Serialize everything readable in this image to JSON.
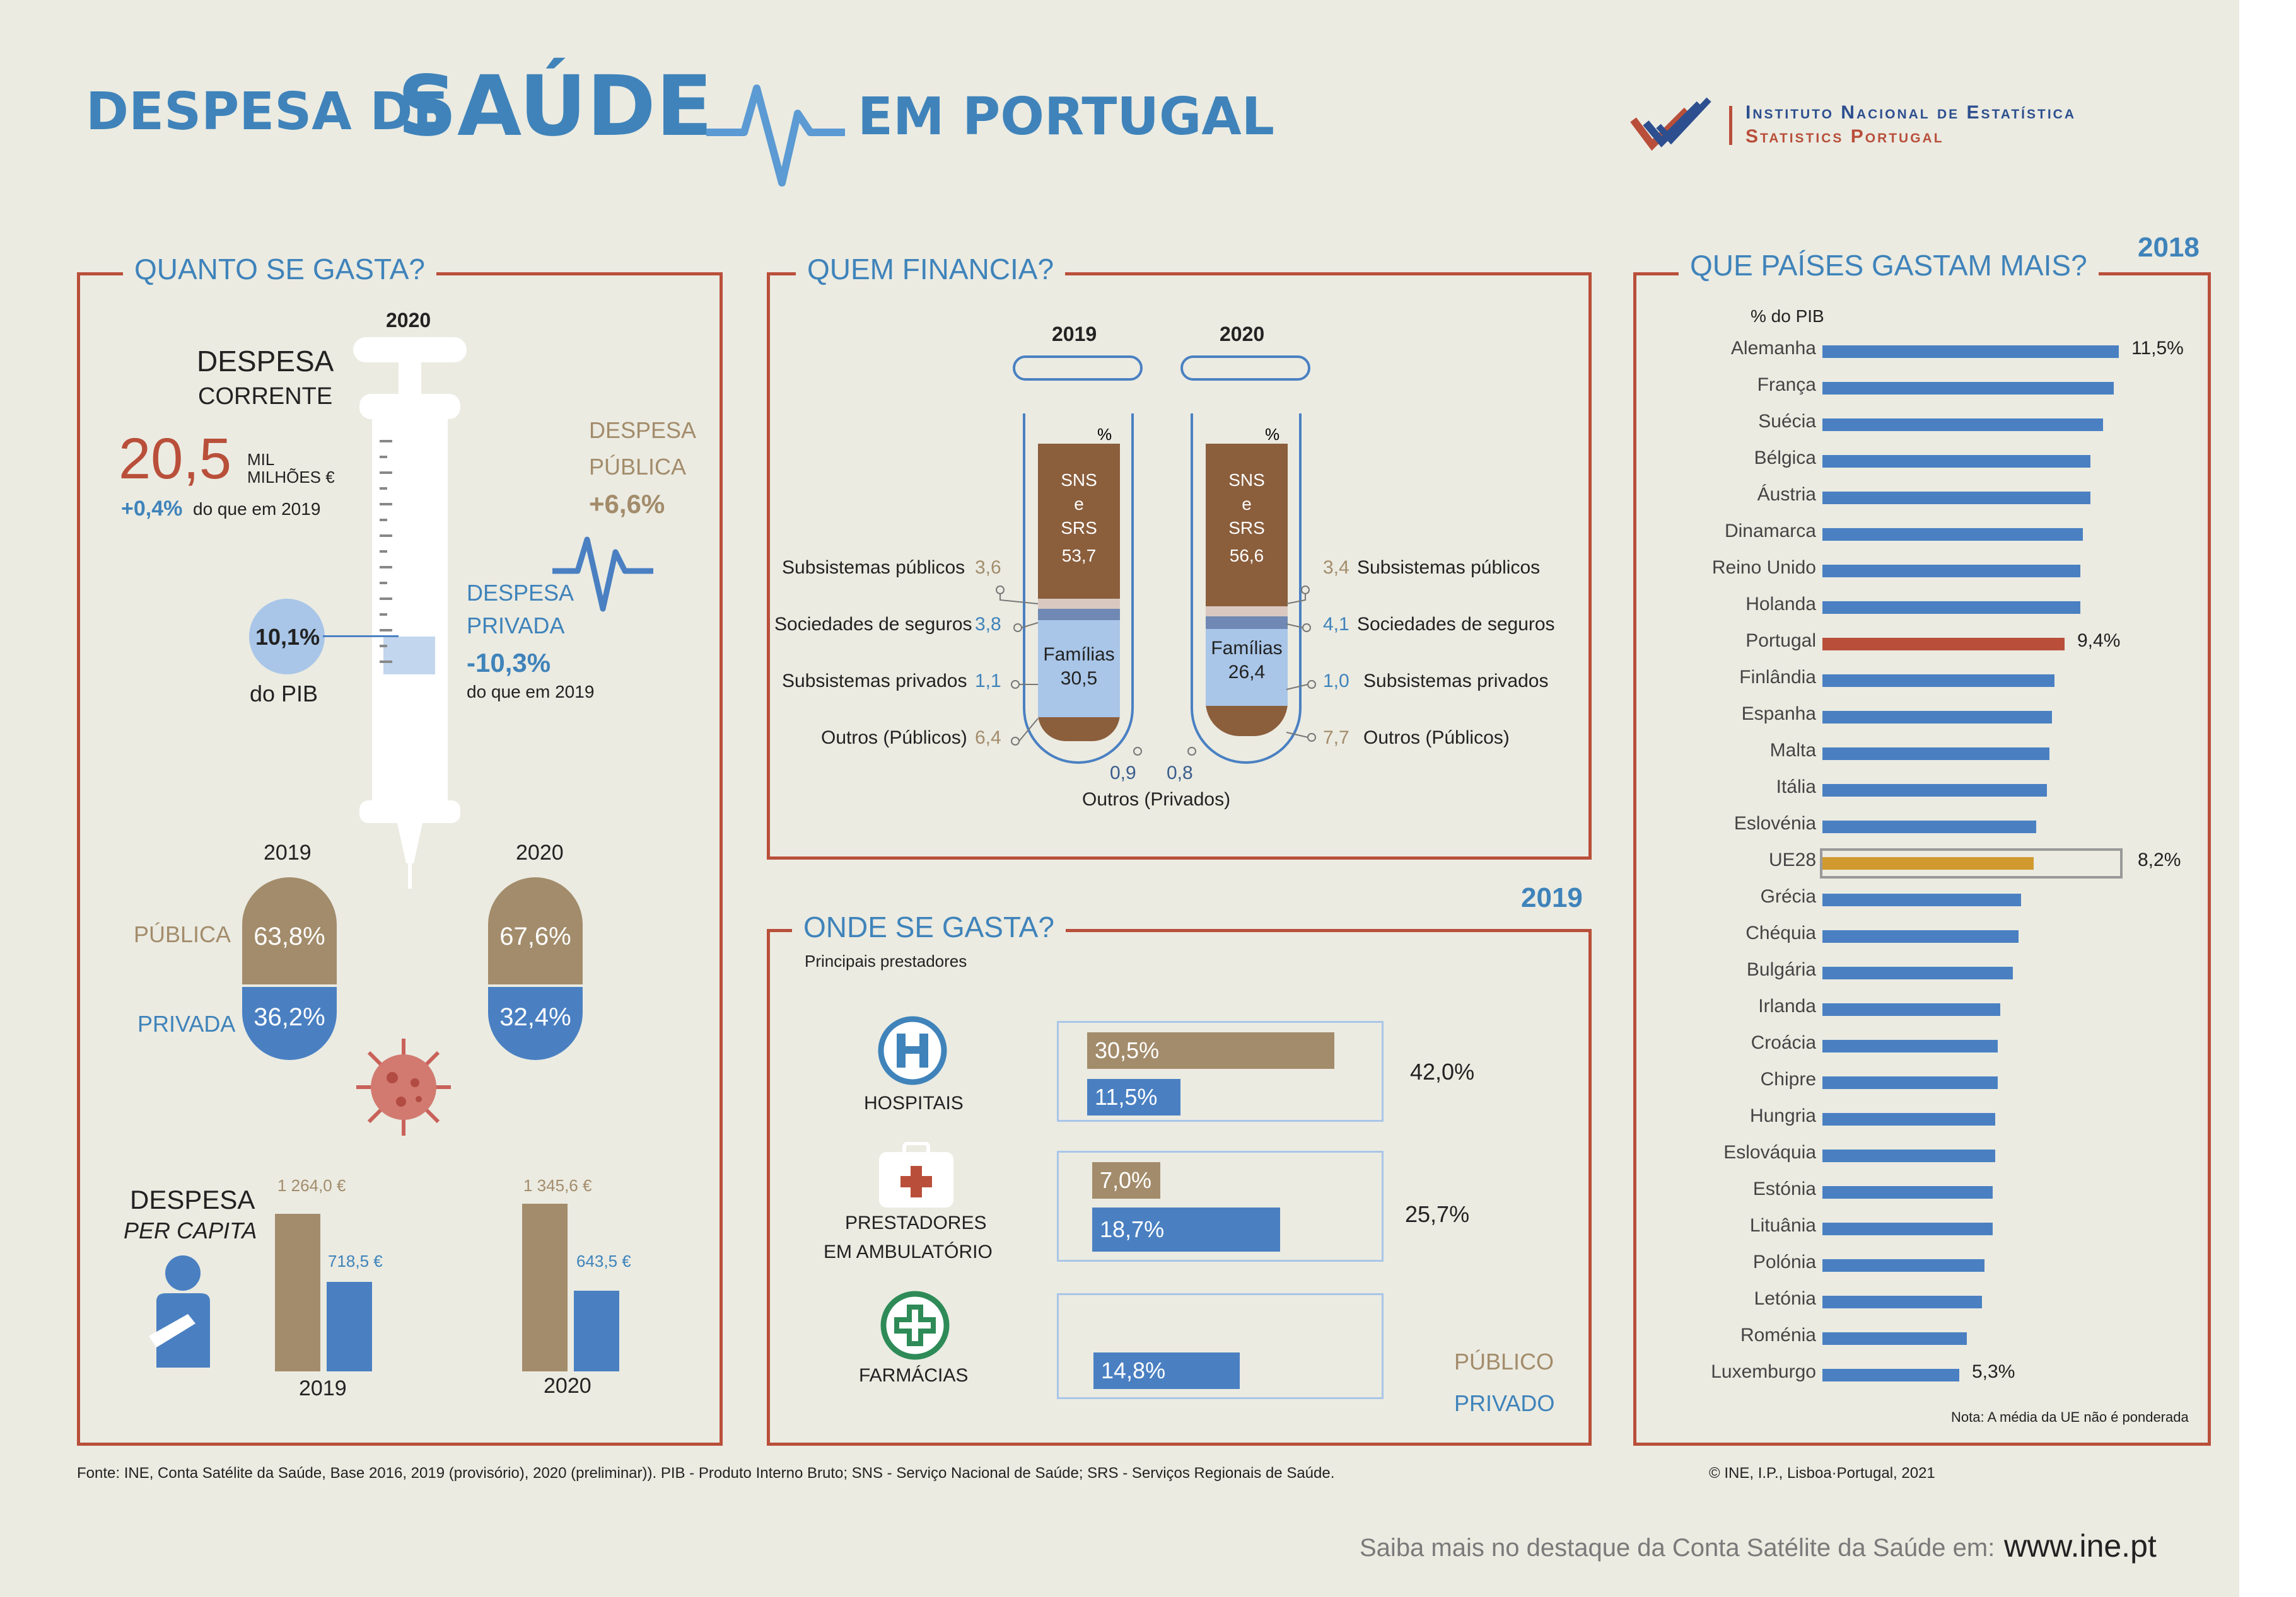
{
  "header": {
    "title_part1": "DESPESA DE",
    "title_part2": "SAÚDE",
    "title_part3": "EM PORTUGAL",
    "org_line1": "Instituto Nacional de Estatística",
    "org_line2": "Statistics Portugal"
  },
  "quanto": {
    "heading": "QUANTO SE GASTA?",
    "year": "2020",
    "despesa_label1": "DESPESA",
    "despesa_label2": "CORRENTE",
    "value": "20,5",
    "unit1": "MIL",
    "unit2": "MILHÕES €",
    "change": "+0,4%",
    "change_note": "do que em 2019",
    "pib_value": "10,1%",
    "pib_label": "do PIB",
    "publica_label1": "DESPESA",
    "publica_label2": "PÚBLICA",
    "publica_change": "+6,6%",
    "privada_label1": "DESPESA",
    "privada_label2": "PRIVADA",
    "privada_change": "-10,3%",
    "privada_note": "do que em 2019",
    "pill_year1": "2019",
    "pill_year2": "2020",
    "publica_word": "PÚBLICA",
    "privada_word": "PRIVADA",
    "pill_2019_pub": "63,8%",
    "pill_2019_priv": "36,2%",
    "pill_2020_pub": "67,6%",
    "pill_2020_priv": "32,4%",
    "percapita_label1": "DESPESA",
    "percapita_label2": "PER CAPITA",
    "pc_2019_pub": "1 264,0 €",
    "pc_2019_priv": "718,5 €",
    "pc_2020_pub": "1 345,6 €",
    "pc_2020_priv": "643,5 €",
    "pc_year1": "2019",
    "pc_year2": "2020"
  },
  "quem": {
    "heading": "QUEM FINANCIA?",
    "year1": "2019",
    "year2": "2020",
    "pct": "%",
    "sns1": "SNS",
    "sns2": "e",
    "sns3": "SRS",
    "sns_2019": "53,7",
    "sns_2020": "56,6",
    "familias": "Famílias",
    "fam_2019": "30,5",
    "fam_2020": "26,4",
    "sub_pub_label": "Subsistemas públicos",
    "sub_pub_2019": "3,6",
    "sub_pub_2020": "3,4",
    "soc_label": "Sociedades de seguros",
    "soc_2019": "3,8",
    "soc_2020": "4,1",
    "sub_priv_label": "Subsistemas privados",
    "sub_priv_2019": "1,1",
    "sub_priv_2020": "1,0",
    "outros_pub_label": "Outros (Públicos)",
    "outros_pub_2019": "6,4",
    "outros_pub_2020": "7,7",
    "outros_priv_2019": "0,9",
    "outros_priv_2020": "0,8",
    "outros_priv_label": "Outros (Privados)"
  },
  "onde": {
    "heading": "ONDE SE GASTA?",
    "year": "2019",
    "subheading": "Principais prestadores",
    "hospitais": "HOSPITAIS",
    "ambul1": "PRESTADORES",
    "ambul2": "EM AMBULATÓRIO",
    "farmacias": "FARMÁCIAS",
    "hosp_pub": "30,5%",
    "hosp_priv": "11,5%",
    "hosp_total": "42,0%",
    "amb_pub": "7,0%",
    "amb_priv": "18,7%",
    "amb_total": "25,7%",
    "farm_priv": "14,8%",
    "legend_pub": "PÚBLICO",
    "legend_priv": "PRIVADO"
  },
  "paises": {
    "heading": "QUE PAÍSES GASTAM MAIS?",
    "year": "2018",
    "axis_label": "% do PIB",
    "note": "Nota: A média da UE não é ponderada"
  },
  "chart_data": {
    "type": "bar",
    "title": "QUE PAÍSES GASTAM MAIS?",
    "xlabel": "% do PIB",
    "categories": [
      "Alemanha",
      "França",
      "Suécia",
      "Bélgica",
      "Áustria",
      "Dinamarca",
      "Reino Unido",
      "Holanda",
      "Portugal",
      "Finlândia",
      "Espanha",
      "Malta",
      "Itália",
      "Eslovénia",
      "UE28",
      "Grécia",
      "Chéquia",
      "Bulgária",
      "Irlanda",
      "Croácia",
      "Chipre",
      "Hungria",
      "Eslováquia",
      "Estónia",
      "Lituânia",
      "Polónia",
      "Letónia",
      "Roménia",
      "Luxemburgo"
    ],
    "values": [
      11.5,
      11.3,
      10.9,
      10.4,
      10.4,
      10.1,
      10.0,
      10.0,
      9.4,
      9.0,
      8.9,
      8.8,
      8.7,
      8.3,
      8.2,
      7.7,
      7.6,
      7.4,
      6.9,
      6.8,
      6.8,
      6.7,
      6.7,
      6.6,
      6.6,
      6.3,
      6.2,
      5.6,
      5.3
    ],
    "labels": {
      "Alemanha": "11,5%",
      "Portugal": "9,4%",
      "UE28": "8,2%",
      "Luxemburgo": "5,3%"
    },
    "highlight": {
      "Portugal": "#b94f3a",
      "UE28": "#d19a2f"
    }
  },
  "footer": {
    "source": "Fonte: INE, Conta Satélite da Saúde, Base 2016, 2019 (provisório), 2020 (preliminar)). PIB - Produto Interno Bruto; SNS - Serviço Nacional de Saúde; SRS - Serviços Regionais de Saúde.",
    "copyright": "© INE, I.P., Lisboa·Portugal, 2021",
    "more": "Saiba mais no destaque da Conta Satélite da Saúde em:",
    "url": "www.ine.pt"
  },
  "colors": {
    "blue": "#4a80c2",
    "brown": "#a38c6b",
    "red": "#b94f3a",
    "gold": "#d19a2f",
    "title_blue": "#3f83ba"
  }
}
